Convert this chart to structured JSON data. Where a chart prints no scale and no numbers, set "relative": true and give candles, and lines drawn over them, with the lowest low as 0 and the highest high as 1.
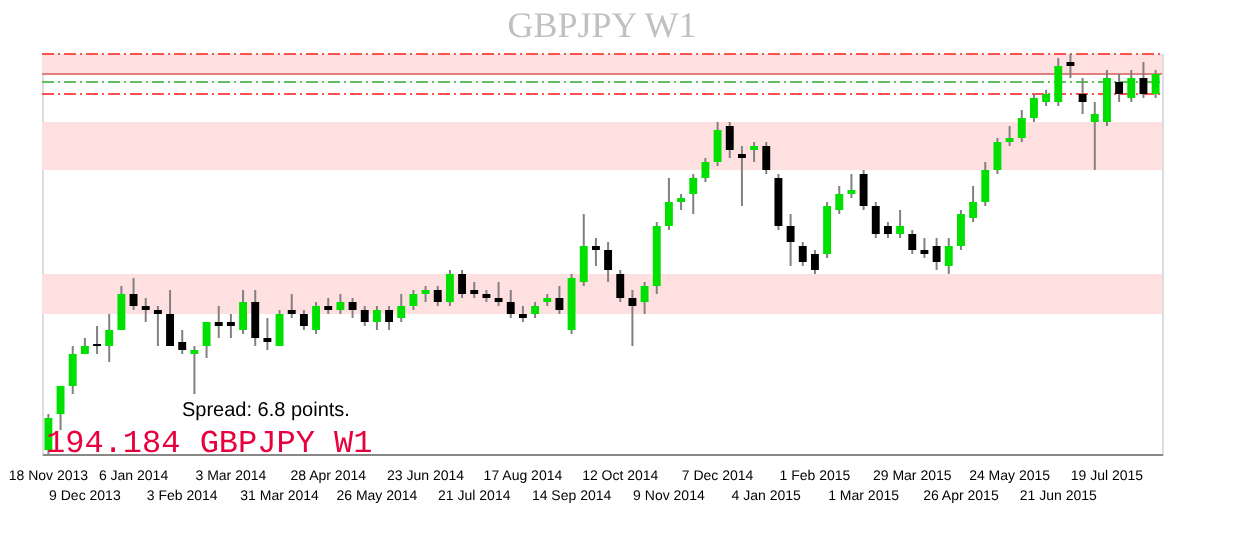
{
  "chart_data": {
    "type": "candlestick",
    "title": "GBPJPY W1",
    "relative": true,
    "categories": [
      "18 Nov 2013",
      null,
      null,
      "9 Dec 2013",
      null,
      null,
      null,
      "6 Jan 2014",
      null,
      null,
      null,
      "3 Feb 2014",
      null,
      null,
      null,
      "3 Mar 2014",
      null,
      null,
      null,
      "31 Mar 2014",
      null,
      null,
      null,
      "28 Apr 2014",
      null,
      null,
      null,
      "26 May 2014",
      null,
      null,
      null,
      "23 Jun 2014",
      null,
      null,
      null,
      "21 Jul 2014",
      null,
      null,
      null,
      "17 Aug 2014",
      null,
      null,
      null,
      "14 Sep 2014",
      null,
      null,
      null,
      "12 Oct 2014",
      null,
      null,
      null,
      "9 Nov 2014",
      null,
      null,
      null,
      "7 Dec 2014",
      null,
      null,
      null,
      "4 Jan 2015",
      null,
      null,
      null,
      "1 Feb 2015",
      null,
      null,
      null,
      "1 Mar 2015",
      null,
      null,
      null,
      "29 Mar 2015",
      null,
      null,
      null,
      "26 Apr 2015",
      null,
      null,
      null,
      "24 May 2015",
      null,
      null,
      null,
      "21 Jun 2015",
      null,
      null,
      null,
      "19 Jul 2015",
      null,
      null,
      null,
      null
    ],
    "ohlc": [
      [
        0.01,
        0.1,
        0,
        0.09
      ],
      [
        0.1,
        0.17,
        0.06,
        0.17
      ],
      [
        0.17,
        0.27,
        0.15,
        0.25
      ],
      [
        0.25,
        0.29,
        0.25,
        0.27
      ],
      [
        0.275,
        0.32,
        0.25,
        0.27
      ],
      [
        0.27,
        0.35,
        0.23,
        0.31
      ],
      [
        0.31,
        0.42,
        0.31,
        0.4
      ],
      [
        0.4,
        0.44,
        0.36,
        0.37
      ],
      [
        0.37,
        0.39,
        0.33,
        0.36
      ],
      [
        0.36,
        0.37,
        0.27,
        0.35
      ],
      [
        0.35,
        0.41,
        0.27,
        0.27
      ],
      [
        0.28,
        0.31,
        0.25,
        0.26
      ],
      [
        0.25,
        0.27,
        0.15,
        0.26
      ],
      [
        0.27,
        0.33,
        0.24,
        0.33
      ],
      [
        0.33,
        0.37,
        0.29,
        0.32
      ],
      [
        0.33,
        0.35,
        0.29,
        0.32
      ],
      [
        0.31,
        0.41,
        0.3,
        0.38
      ],
      [
        0.38,
        0.41,
        0.27,
        0.29
      ],
      [
        0.29,
        0.34,
        0.26,
        0.28
      ],
      [
        0.27,
        0.36,
        0.27,
        0.35
      ],
      [
        0.36,
        0.4,
        0.34,
        0.35
      ],
      [
        0.35,
        0.36,
        0.31,
        0.32
      ],
      [
        0.31,
        0.38,
        0.3,
        0.37
      ],
      [
        0.37,
        0.39,
        0.35,
        0.36
      ],
      [
        0.36,
        0.4,
        0.35,
        0.38
      ],
      [
        0.38,
        0.39,
        0.34,
        0.36
      ],
      [
        0.36,
        0.37,
        0.32,
        0.33
      ],
      [
        0.33,
        0.37,
        0.31,
        0.36
      ],
      [
        0.36,
        0.37,
        0.31,
        0.33
      ],
      [
        0.34,
        0.4,
        0.33,
        0.37
      ],
      [
        0.37,
        0.41,
        0.36,
        0.4
      ],
      [
        0.4,
        0.42,
        0.38,
        0.41
      ],
      [
        0.41,
        0.42,
        0.37,
        0.38
      ],
      [
        0.38,
        0.46,
        0.37,
        0.45
      ],
      [
        0.45,
        0.46,
        0.39,
        0.4
      ],
      [
        0.41,
        0.43,
        0.39,
        0.4
      ],
      [
        0.4,
        0.41,
        0.38,
        0.39
      ],
      [
        0.39,
        0.43,
        0.37,
        0.38
      ],
      [
        0.38,
        0.41,
        0.34,
        0.35
      ],
      [
        0.35,
        0.37,
        0.33,
        0.34
      ],
      [
        0.35,
        0.38,
        0.34,
        0.37
      ],
      [
        0.38,
        0.4,
        0.37,
        0.39
      ],
      [
        0.39,
        0.42,
        0.35,
        0.36
      ],
      [
        0.31,
        0.45,
        0.3,
        0.44
      ],
      [
        0.43,
        0.6,
        0.42,
        0.52
      ],
      [
        0.52,
        0.54,
        0.47,
        0.51
      ],
      [
        0.51,
        0.53,
        0.43,
        0.46
      ],
      [
        0.45,
        0.46,
        0.38,
        0.39
      ],
      [
        0.39,
        0.41,
        0.27,
        0.37
      ],
      [
        0.38,
        0.43,
        0.35,
        0.42
      ],
      [
        0.42,
        0.58,
        0.4,
        0.57
      ],
      [
        0.57,
        0.69,
        0.56,
        0.63
      ],
      [
        0.63,
        0.65,
        0.61,
        0.64
      ],
      [
        0.65,
        0.7,
        0.6,
        0.69
      ],
      [
        0.69,
        0.74,
        0.68,
        0.73
      ],
      [
        0.73,
        0.83,
        0.72,
        0.81
      ],
      [
        0.82,
        0.83,
        0.74,
        0.76
      ],
      [
        0.75,
        0.77,
        0.62,
        0.74
      ],
      [
        0.76,
        0.78,
        0.73,
        0.77
      ],
      [
        0.77,
        0.78,
        0.7,
        0.71
      ],
      [
        0.69,
        0.7,
        0.56,
        0.57
      ],
      [
        0.57,
        0.6,
        0.47,
        0.53
      ],
      [
        0.52,
        0.53,
        0.47,
        0.48
      ],
      [
        0.5,
        0.51,
        0.45,
        0.46
      ],
      [
        0.5,
        0.63,
        0.49,
        0.62
      ],
      [
        0.61,
        0.67,
        0.6,
        0.65
      ],
      [
        0.65,
        0.7,
        0.64,
        0.66
      ],
      [
        0.7,
        0.71,
        0.61,
        0.62
      ],
      [
        0.62,
        0.63,
        0.54,
        0.55
      ],
      [
        0.57,
        0.58,
        0.54,
        0.55
      ],
      [
        0.55,
        0.61,
        0.54,
        0.57
      ],
      [
        0.55,
        0.56,
        0.5,
        0.51
      ],
      [
        0.51,
        0.54,
        0.49,
        0.5
      ],
      [
        0.52,
        0.54,
        0.46,
        0.48
      ],
      [
        0.47,
        0.54,
        0.45,
        0.52
      ],
      [
        0.52,
        0.61,
        0.51,
        0.6
      ],
      [
        0.59,
        0.67,
        0.58,
        0.63
      ],
      [
        0.63,
        0.73,
        0.62,
        0.71
      ],
      [
        0.71,
        0.79,
        0.7,
        0.78
      ],
      [
        0.78,
        0.82,
        0.77,
        0.79
      ],
      [
        0.79,
        0.86,
        0.78,
        0.84
      ],
      [
        0.84,
        0.9,
        0.83,
        0.89
      ],
      [
        0.88,
        0.91,
        0.87,
        0.9
      ],
      [
        0.88,
        0.99,
        0.87,
        0.97
      ],
      [
        0.98,
        1.0,
        0.94,
        0.97
      ],
      [
        0.9,
        0.94,
        0.85,
        0.88
      ],
      [
        0.83,
        0.88,
        0.71,
        0.85
      ],
      [
        0.83,
        0.96,
        0.82,
        0.94
      ],
      [
        0.93,
        0.95,
        0.88,
        0.9
      ],
      [
        0.89,
        0.96,
        0.88,
        0.94
      ],
      [
        0.94,
        0.98,
        0.89,
        0.9
      ],
      [
        0.9,
        0.96,
        0.89,
        0.95
      ]
    ],
    "colors": [
      "#00e000",
      "#00e000",
      "#00e000",
      "#00e000",
      "#000000",
      "#00e000",
      "#00e000",
      "#000000",
      "#000000",
      "#000000",
      "#000000",
      "#000000",
      "#00e000",
      "#00e000",
      "#000000",
      "#000000",
      "#00e000",
      "#000000",
      "#000000",
      "#00e000",
      "#000000",
      "#000000",
      "#00e000",
      "#000000",
      "#00e000",
      "#000000",
      "#000000",
      "#00e000",
      "#000000",
      "#00e000",
      "#00e000",
      "#00e000",
      "#000000",
      "#00e000",
      "#000000",
      "#000000",
      "#000000",
      "#000000",
      "#000000",
      "#000000",
      "#00e000",
      "#00e000",
      "#000000",
      "#00e000",
      "#00e000",
      "#000000",
      "#000000",
      "#000000",
      "#000000",
      "#00e000",
      "#00e000",
      "#00e000",
      "#00e000",
      "#00e000",
      "#00e000",
      "#00e000",
      "#000000",
      "#000000",
      "#00e000",
      "#000000",
      "#000000",
      "#000000",
      "#000000",
      "#000000",
      "#00e000",
      "#00e000",
      "#00e000",
      "#000000",
      "#000000",
      "#000000",
      "#00e000",
      "#000000",
      "#000000",
      "#000000",
      "#00e000",
      "#00e000",
      "#00e000",
      "#00e000",
      "#00e000",
      "#00e000",
      "#00e000",
      "#00e000",
      "#00e000",
      "#00e000",
      "#000000",
      "#000000",
      "#00e000",
      "#00e000",
      "#000000",
      "#00e000",
      "#000000",
      "#00e000"
    ],
    "bands": [
      {
        "axis": "y",
        "from": 0.35,
        "to": 0.45,
        "color": "#ffe0e0"
      },
      {
        "axis": "y",
        "from": 0.71,
        "to": 0.83,
        "color": "#ffe0e0"
      },
      {
        "axis": "y",
        "from": 0.95,
        "to": 1.0,
        "color": "#ffe0e0"
      }
    ],
    "ref_lines": [
      {
        "axis": "y",
        "value": 1.0,
        "color": "#ff5050",
        "line_style": "dashed"
      },
      {
        "axis": "y",
        "value": 0.95,
        "color": "#e08080",
        "line_style": "solid"
      },
      {
        "axis": "y",
        "value": 0.93,
        "color": "#60c060",
        "line_style": "dashed"
      },
      {
        "axis": "y",
        "value": 0.9,
        "color": "#ff5050",
        "line_style": "dashed"
      }
    ],
    "annotations": [
      "Spread: 6.8 points.",
      "194.184 GBPJPY W1"
    ]
  }
}
